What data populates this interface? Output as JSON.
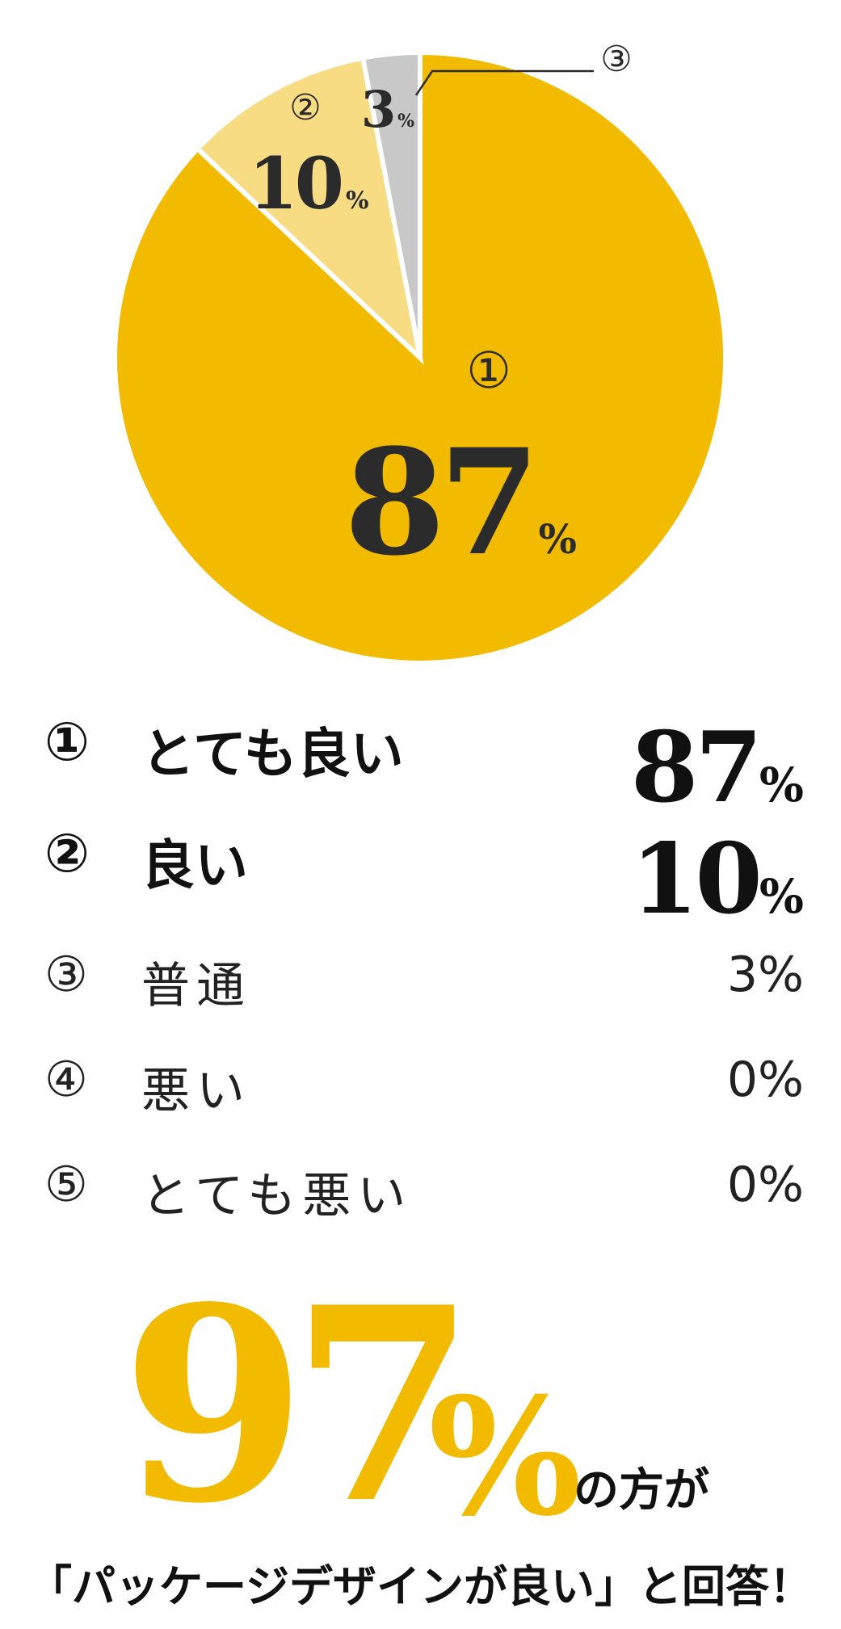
{
  "chart_data": {
    "type": "pie",
    "slices": [
      {
        "marker": "①",
        "value": 87,
        "value_text": "87",
        "color": "#f2bb00"
      },
      {
        "marker": "②",
        "value": 10,
        "value_text": "10",
        "color": "#f7dc84"
      },
      {
        "marker": "③",
        "value": 3,
        "value_text": "3",
        "color": "#c8c8c8"
      }
    ],
    "percent_symbol": "%",
    "start_angle_deg": 0,
    "direction": "clockwise"
  },
  "legend": [
    {
      "marker": "①",
      "label": "とても良い",
      "value": "87",
      "unit": "%",
      "emphasis": true
    },
    {
      "marker": "②",
      "label": "良い",
      "value": "10",
      "unit": "%",
      "emphasis": true
    },
    {
      "marker": "③",
      "label": "普通",
      "value": "3%",
      "emphasis": false
    },
    {
      "marker": "④",
      "label": "悪い",
      "value": "0%",
      "emphasis": false
    },
    {
      "marker": "⑤",
      "label": "とても悪い",
      "value": "0%",
      "emphasis": false
    }
  ],
  "headline": {
    "number": "97",
    "percent": "%",
    "suffix": "の方が",
    "line2": "「パッケージデザインが良い」と回答！",
    "accent_color": "#f2bb00"
  }
}
